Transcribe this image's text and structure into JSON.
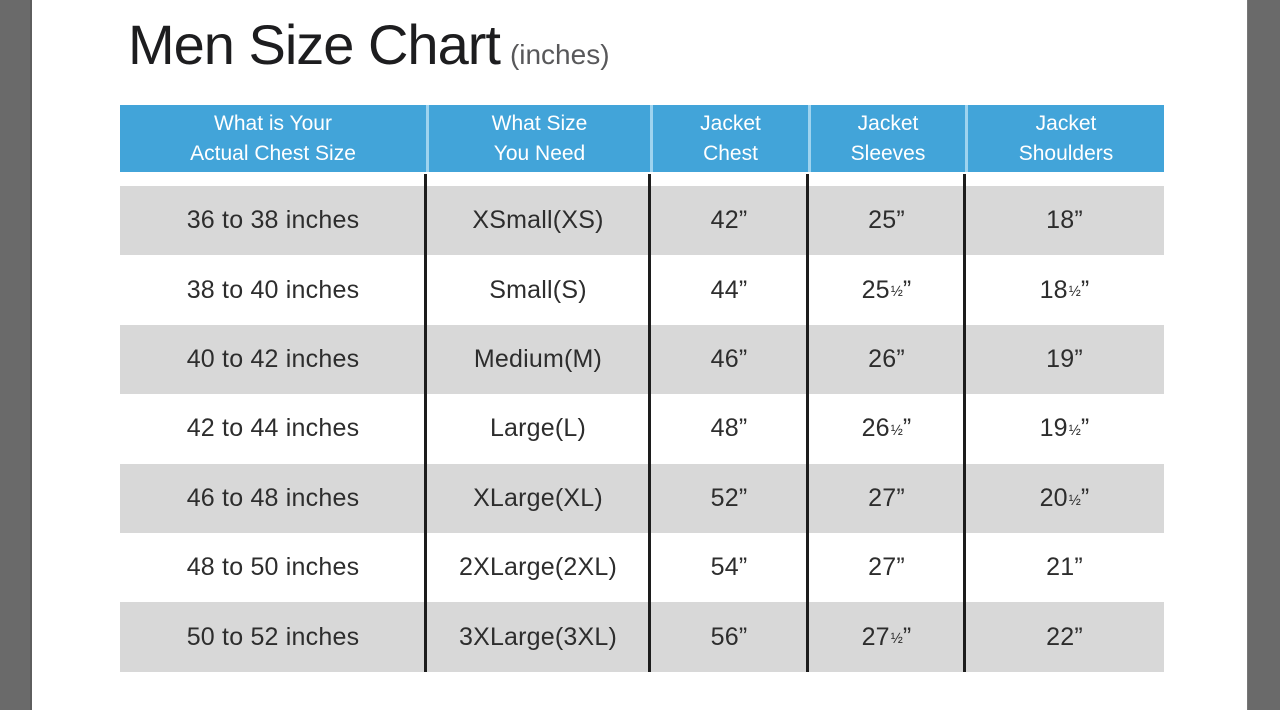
{
  "title": {
    "text": "Men Size Chart",
    "unit_suffix": "(inches)"
  },
  "colors": {
    "header_bg": "#42a4d9",
    "header_text": "#ffffff",
    "header_divider": "#9ed3ef",
    "row_alt_bg": "#d8d8d8",
    "row_bg": "#ffffff",
    "divider": "#1d1d1d",
    "rail": "#6a6a6a",
    "title_text": "#1d1d1f",
    "subtitle_text": "#58585a",
    "body_text": "#2d2d2d"
  },
  "table": {
    "columns": [
      {
        "id": "chest-range",
        "label_lines": [
          "What is Your",
          "Actual Chest Size"
        ]
      },
      {
        "id": "size-needed",
        "label_lines": [
          "What Size",
          "You Need"
        ]
      },
      {
        "id": "jacket-chest",
        "label_lines": [
          "Jacket",
          "Chest"
        ]
      },
      {
        "id": "jacket-sleeves",
        "label_lines": [
          "Jacket",
          "Sleeves"
        ]
      },
      {
        "id": "jacket-shoulders",
        "label_lines": [
          "Jacket",
          "Shoulders"
        ]
      }
    ],
    "rows": [
      [
        "36 to 38 inches",
        "XSmall(XS)",
        "42”",
        "25”",
        "18”"
      ],
      [
        "38 to 40 inches",
        "Small(S)",
        "44”",
        "25½”",
        "18½”"
      ],
      [
        "40 to 42 inches",
        "Medium(M)",
        "46”",
        "26”",
        "19”"
      ],
      [
        "42 to 44 inches",
        "Large(L)",
        "48”",
        "26½”",
        "19½”"
      ],
      [
        "46 to 48 inches",
        "XLarge(XL)",
        "52”",
        "27”",
        "20½”"
      ],
      [
        "48 to 50 inches",
        "2XLarge(2XL)",
        "54”",
        "27”",
        "21”"
      ],
      [
        "50 to 52 inches",
        "3XLarge(3XL)",
        "56”",
        "27½”",
        "22”"
      ]
    ]
  },
  "chart_data": {
    "type": "table",
    "title": "Men Size Chart (inches)",
    "units": "inches",
    "columns": [
      "What is Your Actual Chest Size",
      "What Size You Need",
      "Jacket Chest",
      "Jacket Sleeves",
      "Jacket Shoulders"
    ],
    "rows": [
      [
        "36 to 38 inches",
        "XSmall(XS)",
        42,
        25,
        18
      ],
      [
        "38 to 40 inches",
        "Small(S)",
        44,
        25.5,
        18.5
      ],
      [
        "40 to 42 inches",
        "Medium(M)",
        46,
        26,
        19
      ],
      [
        "42 to 44 inches",
        "Large(L)",
        48,
        26.5,
        19.5
      ],
      [
        "46 to 48 inches",
        "XLarge(XL)",
        52,
        27,
        20.5
      ],
      [
        "48 to 50 inches",
        "2XLarge(2XL)",
        54,
        27,
        21
      ],
      [
        "50 to 52 inches",
        "3XLarge(3XL)",
        56,
        27.5,
        22
      ]
    ]
  }
}
